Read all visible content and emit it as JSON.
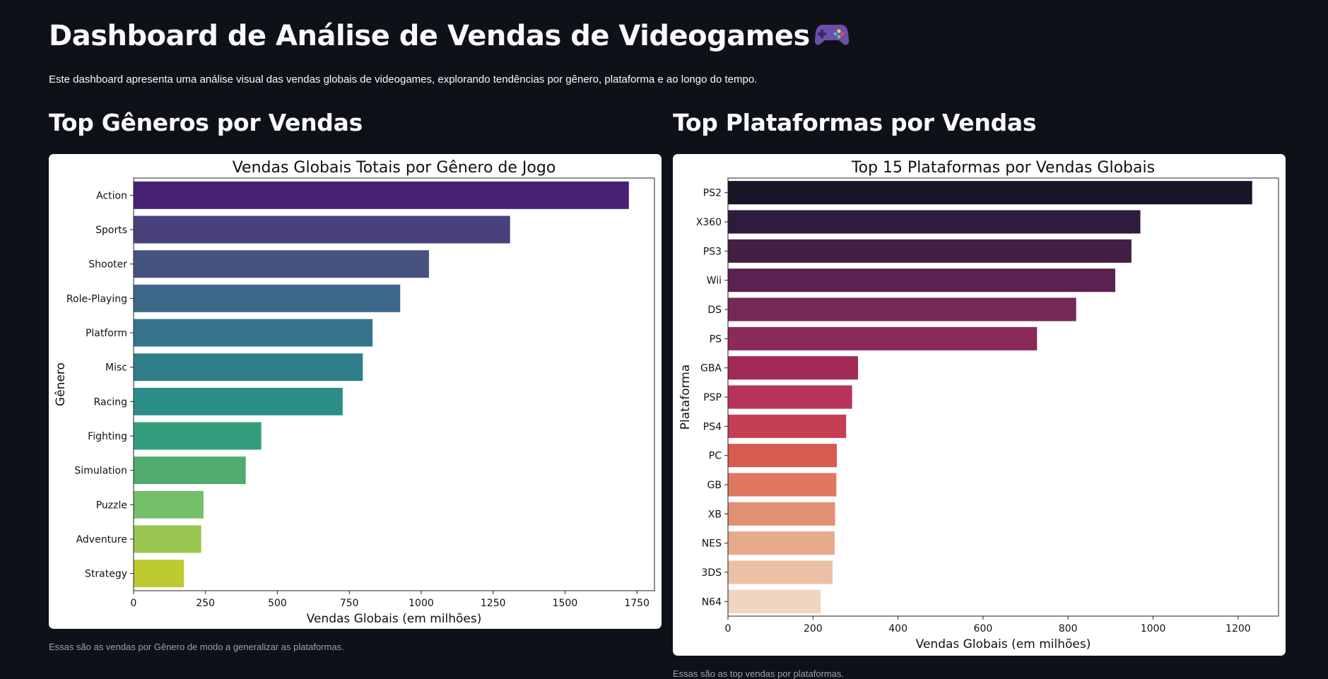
{
  "header": {
    "title": "Dashboard de Análise de Vendas de Videogames",
    "description": "Este dashboard apresenta uma análise visual das vendas globais de videogames, explorando tendências por gênero, plataforma e ao longo do tempo."
  },
  "left_section": {
    "heading": "Top Gêneros por Vendas",
    "caption": "Essas são as vendas por Gênero de modo a generalizar as plataformas."
  },
  "right_section": {
    "heading": "Top Plataformas por Vendas",
    "caption": "Essas são as top vendas por plataformas."
  },
  "chart_data": [
    {
      "type": "bar",
      "orientation": "horizontal",
      "title": "Vendas Globais Totais por Gênero de Jogo",
      "xlabel": "Vendas Globais (em milhões)",
      "ylabel": "Gênero",
      "categories": [
        "Action",
        "Sports",
        "Shooter",
        "Role-Playing",
        "Platform",
        "Misc",
        "Racing",
        "Fighting",
        "Simulation",
        "Puzzle",
        "Adventure",
        "Strategy"
      ],
      "values": [
        1722,
        1309,
        1027,
        927,
        831,
        797,
        727,
        444,
        390,
        243,
        235,
        175
      ],
      "xlim": [
        0,
        1811
      ],
      "xticks": [
        0,
        250,
        500,
        750,
        1000,
        1250,
        1500,
        1750
      ],
      "colors": [
        "#482173",
        "#48417b",
        "#46527f",
        "#3e6889",
        "#35748a",
        "#2e7f89",
        "#2a8e86",
        "#339d7d",
        "#50ab70",
        "#75bf68",
        "#98c54f",
        "#bcc92f"
      ],
      "palette": "viridis",
      "grid": false
    },
    {
      "type": "bar",
      "orientation": "horizontal",
      "title": "Top 15 Plataformas por Vendas Globais",
      "xlabel": "Vendas Globais (em milhões)",
      "ylabel": "Plataforma",
      "categories": [
        "PS2",
        "X360",
        "PS3",
        "Wii",
        "DS",
        "PS",
        "GBA",
        "PSP",
        "PS4",
        "PC",
        "GB",
        "XB",
        "NES",
        "3DS",
        "N64"
      ],
      "values": [
        1233,
        970,
        949,
        911,
        819,
        727,
        306,
        292,
        278,
        256,
        255,
        252,
        251,
        246,
        218
      ],
      "xlim": [
        0,
        1295
      ],
      "xticks": [
        0,
        200,
        400,
        600,
        800,
        1000,
        1200
      ],
      "colors": [
        "#1a1428",
        "#2f1c3c",
        "#431f44",
        "#5b2150",
        "#732857",
        "#8c2a5a",
        "#a22a57",
        "#b9325a",
        "#c63e54",
        "#d65c50",
        "#e07861",
        "#e38f73",
        "#e7aa8c",
        "#ebc0a4",
        "#f0d5c3"
      ],
      "palette": "rocket",
      "grid": false
    }
  ]
}
